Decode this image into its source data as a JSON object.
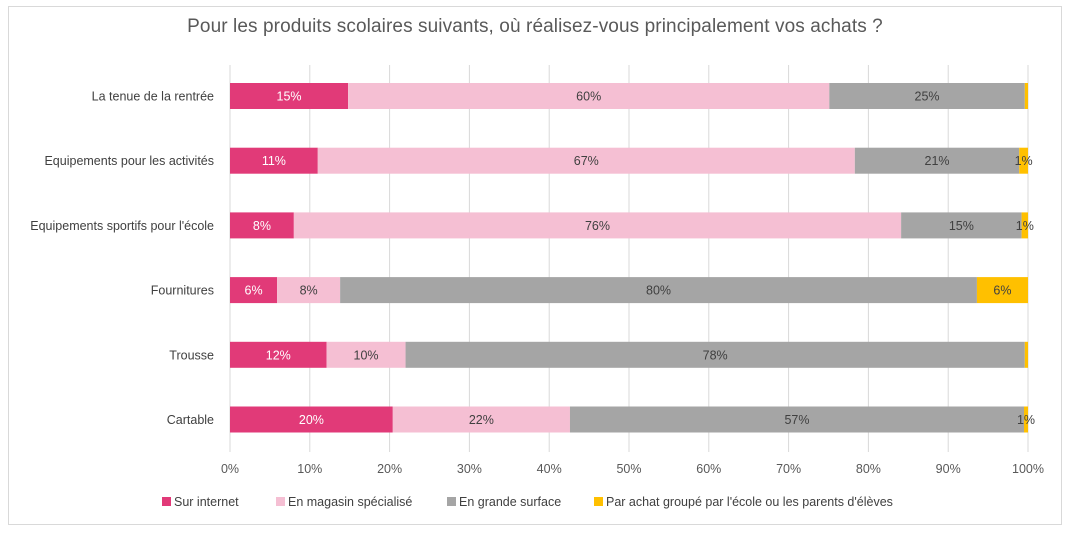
{
  "chart_data": {
    "type": "bar",
    "orientation": "horizontal",
    "stacked": true,
    "title": "Pour les produits scolaires suivants, où réalisez-vous principalement vos achats ?",
    "categories": [
      "La tenue de la rentrée",
      "Equipements pour les activités",
      "Equipements sportifs pour l'école",
      "Fournitures",
      "Trousse",
      "Cartable"
    ],
    "series": [
      {
        "name": "Sur internet",
        "color": "#e13a78",
        "values": [
          14.8,
          11.0,
          8.0,
          5.9,
          12.1,
          20.4
        ],
        "labels": [
          "15%",
          "11%",
          "8%",
          "6%",
          "12%",
          "20%"
        ],
        "label_color": "#ffffff"
      },
      {
        "name": "En magasin spécialisé",
        "color": "#f5bfd3",
        "values": [
          60.3,
          67.3,
          76.1,
          7.9,
          9.9,
          22.2
        ],
        "labels": [
          "60%",
          "67%",
          "76%",
          "8%",
          "10%",
          "22%"
        ],
        "label_color": "#404040"
      },
      {
        "name": "En grande surface",
        "color": "#a5a5a5",
        "values": [
          24.5,
          20.6,
          15.1,
          79.8,
          77.6,
          56.9
        ],
        "labels": [
          "25%",
          "21%",
          "15%",
          "80%",
          "78%",
          "57%"
        ],
        "label_color": "#404040"
      },
      {
        "name": "Par achat groupé par l'école ou les parents d'élèves",
        "color": "#ffc000",
        "values": [
          0.4,
          1.1,
          0.8,
          6.4,
          0.4,
          0.5
        ],
        "labels": [
          "",
          "1%",
          "1%",
          "6%",
          "",
          "1%"
        ],
        "label_color": "#404040"
      }
    ],
    "xlim": [
      0,
      100
    ],
    "x_ticks": [
      "0%",
      "10%",
      "20%",
      "30%",
      "40%",
      "50%",
      "60%",
      "70%",
      "80%",
      "90%",
      "100%"
    ],
    "grid": true,
    "legend_position": "bottom"
  }
}
